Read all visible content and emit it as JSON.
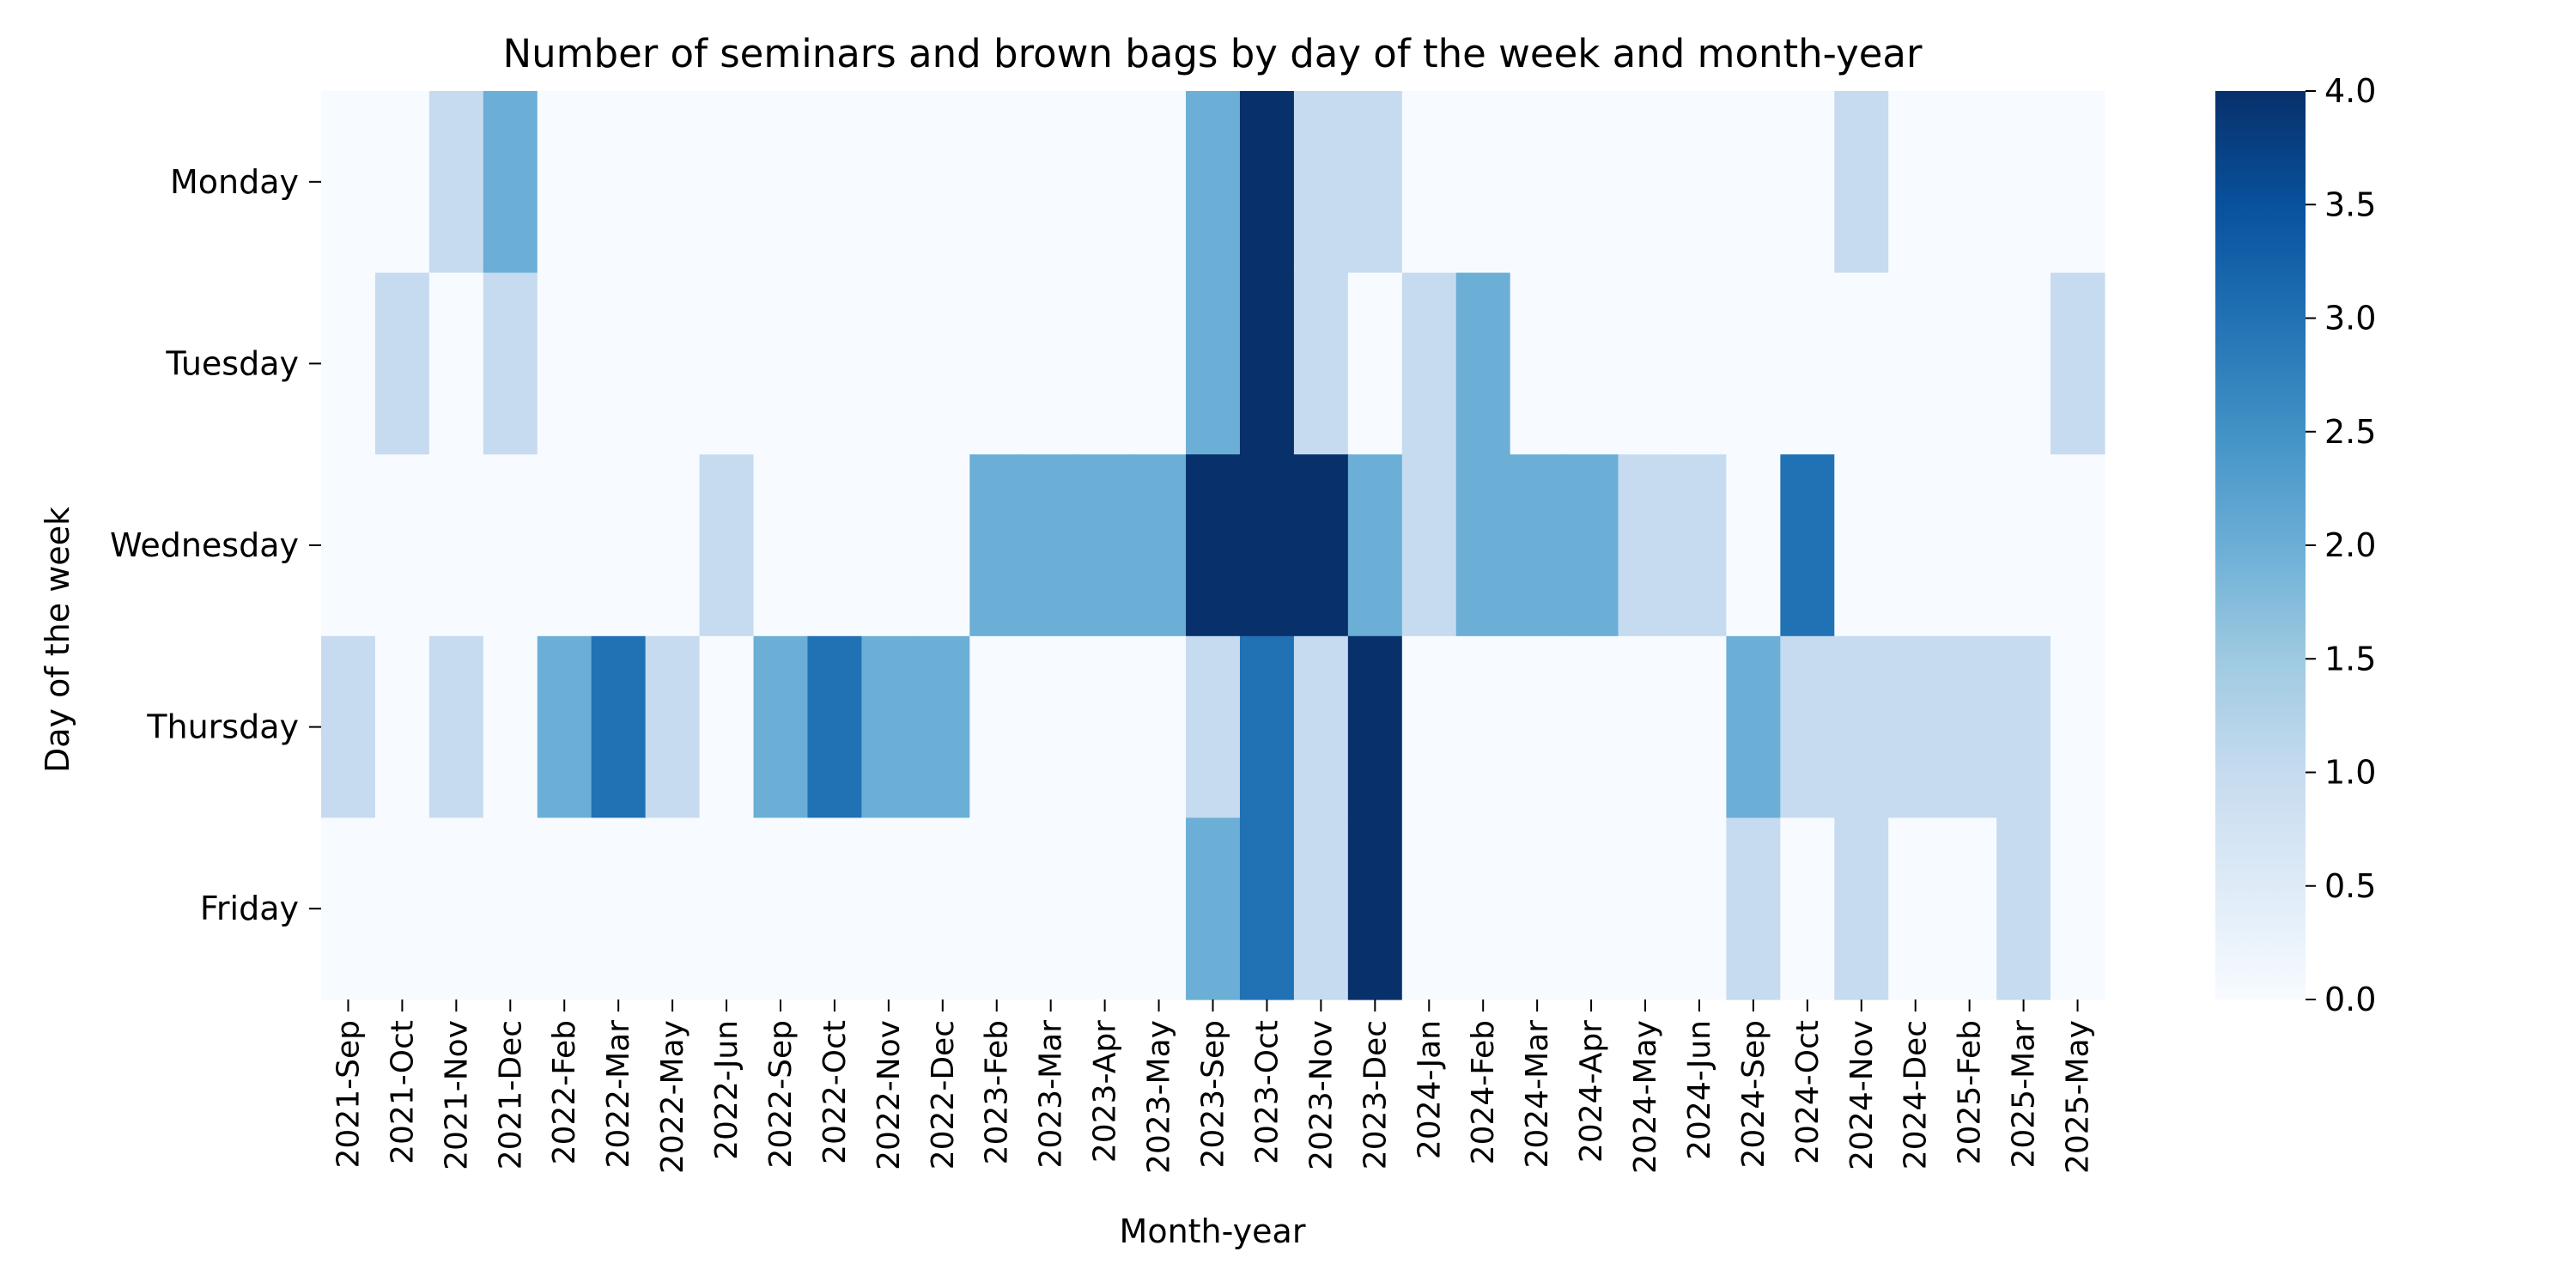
{
  "chart_data": {
    "type": "heatmap",
    "title": "Number of seminars and brown bags by day of the week and month-year",
    "xlabel": "Month-year",
    "ylabel": "Day of the week",
    "x": [
      "2021-Sep",
      "2021-Oct",
      "2021-Nov",
      "2021-Dec",
      "2022-Feb",
      "2022-Mar",
      "2022-May",
      "2022-Jun",
      "2022-Sep",
      "2022-Oct",
      "2022-Nov",
      "2022-Dec",
      "2023-Feb",
      "2023-Mar",
      "2023-Apr",
      "2023-May",
      "2023-Sep",
      "2023-Oct",
      "2023-Nov",
      "2023-Dec",
      "2024-Jan",
      "2024-Feb",
      "2024-Mar",
      "2024-Apr",
      "2024-May",
      "2024-Jun",
      "2024-Sep",
      "2024-Oct",
      "2024-Nov",
      "2024-Dec",
      "2025-Feb",
      "2025-Mar",
      "2025-May"
    ],
    "y": [
      "Monday",
      "Tuesday",
      "Wednesday",
      "Thursday",
      "Friday"
    ],
    "values": [
      [
        0,
        0,
        1,
        2,
        0,
        0,
        0,
        0,
        0,
        0,
        0,
        0,
        0,
        0,
        0,
        0,
        2,
        4,
        1,
        1,
        0,
        0,
        0,
        0,
        0,
        0,
        0,
        0,
        1,
        0,
        0,
        0,
        0
      ],
      [
        0,
        1,
        0,
        1,
        0,
        0,
        0,
        0,
        0,
        0,
        0,
        0,
        0,
        0,
        0,
        0,
        2,
        4,
        1,
        0,
        1,
        2,
        0,
        0,
        0,
        0,
        0,
        0,
        0,
        0,
        0,
        0,
        1
      ],
      [
        0,
        0,
        0,
        0,
        0,
        0,
        0,
        1,
        0,
        0,
        0,
        0,
        2,
        2,
        2,
        2,
        4,
        4,
        4,
        2,
        1,
        2,
        2,
        2,
        1,
        1,
        0,
        3,
        0,
        0,
        0,
        0,
        0
      ],
      [
        1,
        0,
        1,
        0,
        2,
        3,
        1,
        0,
        2,
        3,
        2,
        2,
        0,
        0,
        0,
        0,
        1,
        3,
        1,
        4,
        0,
        0,
        0,
        0,
        0,
        0,
        2,
        1,
        1,
        1,
        1,
        1,
        0
      ],
      [
        0,
        0,
        0,
        0,
        0,
        0,
        0,
        0,
        0,
        0,
        0,
        0,
        0,
        0,
        0,
        0,
        2,
        3,
        1,
        4,
        0,
        0,
        0,
        0,
        0,
        0,
        1,
        0,
        1,
        0,
        0,
        1,
        0
      ]
    ],
    "colorbar": {
      "ticks": [
        "0.0",
        "0.5",
        "1.0",
        "1.5",
        "2.0",
        "2.5",
        "3.0",
        "3.5",
        "4.0"
      ],
      "range": [
        0,
        4
      ],
      "colormap": "Blues"
    },
    "colors": [
      "#f7fbff",
      "#c6dbef",
      "#6baed6",
      "#2171b5",
      "#08306b"
    ],
    "grid": false
  }
}
